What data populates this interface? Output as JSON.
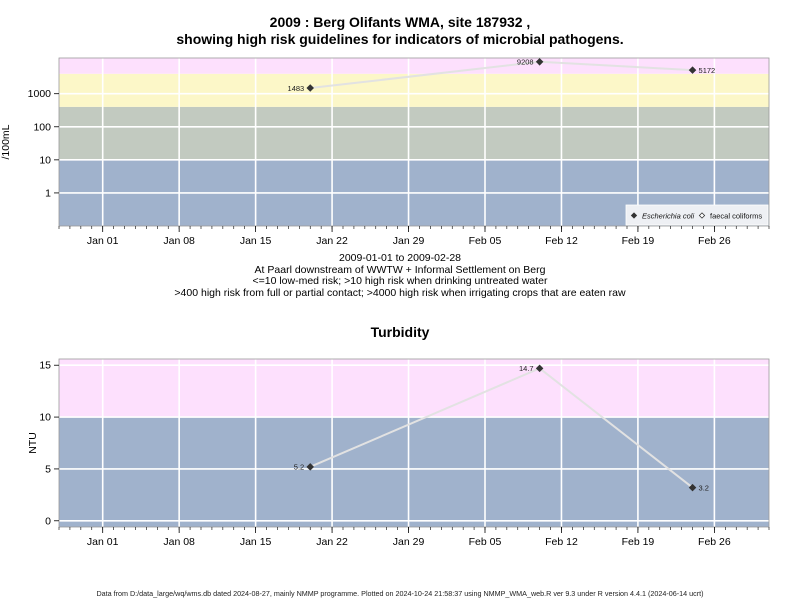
{
  "page": {
    "title_line1": "2009 : Berg Olifants WMA, site 187932 ,",
    "title_line2": "showing high risk guidelines for indicators of microbial pathogens.",
    "subtitle_lines": [
      "2009-01-01 to 2009-02-28",
      "At Paarl downstream of WWTW + Informal Settlement on Berg",
      "<=10 low-med risk; >10 high risk when drinking untreated water",
      ">400 high risk from full or partial contact; >4000 high risk when irrigating crops that are eaten raw"
    ],
    "footer": "Data from D:/data_large/wq/wms.db dated 2024-08-27, mainly NMMP programme. Plotted on 2024-10-24 21:58:37 using NMMP_WMA_web.R ver 9.3 under R version 4.4.1 (2024-06-14 ucrt)"
  },
  "colors": {
    "band_blue": "#a0b2cc",
    "band_grey": "#c2cac0",
    "band_yellow": "#fcf7c8",
    "band_pink": "#fde0fd",
    "line": "#e2e2e2",
    "grid": "#ffffff",
    "point": "#333333"
  },
  "chart_data": [
    {
      "type": "line",
      "log_y": true,
      "ylabel": "/100mL",
      "xlim": [
        "2008-12-28",
        "2009-03-03"
      ],
      "ylim": [
        0.1,
        12000
      ],
      "x_ticks": [
        "2009-01-01",
        "2009-01-08",
        "2009-01-15",
        "2009-01-22",
        "2009-01-29",
        "2009-02-05",
        "2009-02-12",
        "2009-02-19",
        "2009-02-26"
      ],
      "x_tick_labels": [
        "Jan 01",
        "Jan 08",
        "Jan 15",
        "Jan 22",
        "Jan 29",
        "Feb 05",
        "Feb 12",
        "Feb 19",
        "Feb 26"
      ],
      "y_ticks": [
        1,
        10,
        100,
        1000
      ],
      "y_tick_labels": [
        "1",
        "10",
        "100",
        "1000"
      ],
      "bands": [
        {
          "from": 0.1,
          "to": 10,
          "color": "band_blue"
        },
        {
          "from": 10,
          "to": 400,
          "color": "band_grey"
        },
        {
          "from": 400,
          "to": 4000,
          "color": "band_yellow"
        },
        {
          "from": 4000,
          "to": 12000,
          "color": "band_pink"
        }
      ],
      "series": [
        {
          "name": "Escherichia coli",
          "marker": "filled-diamond",
          "x": [
            "2009-01-20",
            "2009-02-10",
            "2009-02-24"
          ],
          "y": [
            1483,
            9208,
            5172
          ],
          "labels": [
            "1483",
            "9208",
            "5172"
          ]
        }
      ],
      "legend": {
        "position": "bottom-right",
        "entries": [
          {
            "name": "Escherichia coli",
            "marker": "filled-diamond",
            "italic": true
          },
          {
            "name": "faecal coliforms",
            "marker": "open-diamond",
            "italic": false
          }
        ]
      },
      "grid": true
    },
    {
      "type": "line",
      "title": "Turbidity",
      "ylabel": "NTU",
      "xlim": [
        "2008-12-28",
        "2009-03-03"
      ],
      "ylim": [
        -0.6,
        15.6
      ],
      "x_ticks": [
        "2009-01-01",
        "2009-01-08",
        "2009-01-15",
        "2009-01-22",
        "2009-01-29",
        "2009-02-05",
        "2009-02-12",
        "2009-02-19",
        "2009-02-26"
      ],
      "x_tick_labels": [
        "Jan 01",
        "Jan 08",
        "Jan 15",
        "Jan 22",
        "Jan 29",
        "Feb 05",
        "Feb 12",
        "Feb 19",
        "Feb 26"
      ],
      "y_ticks": [
        0,
        5,
        10,
        15
      ],
      "y_tick_labels": [
        "0",
        "5",
        "10",
        "15"
      ],
      "bands": [
        {
          "from": -0.6,
          "to": 10,
          "color": "band_blue"
        },
        {
          "from": 10,
          "to": 15.6,
          "color": "band_pink"
        }
      ],
      "series": [
        {
          "marker": "filled-diamond",
          "x": [
            "2009-01-20",
            "2009-02-10",
            "2009-02-24"
          ],
          "y": [
            5.2,
            14.7,
            3.2
          ],
          "labels": [
            "5.2",
            "14.7",
            "3.2"
          ]
        }
      ],
      "grid": true
    }
  ]
}
